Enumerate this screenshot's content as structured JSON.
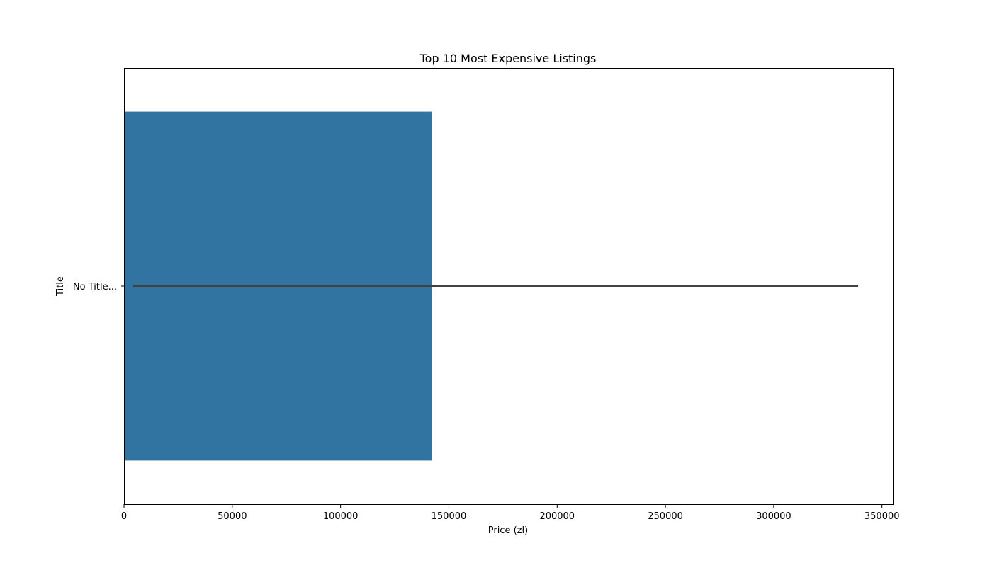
{
  "chart_data": {
    "type": "bar",
    "orientation": "horizontal",
    "title": "Top 10 Most Expensive Listings",
    "xlabel": "Price (zł)",
    "ylabel": "Title",
    "categories": [
      "No Title..."
    ],
    "values": [
      142000
    ],
    "error_bars": [
      {
        "low": 4000,
        "high": 339000
      }
    ],
    "xlim": [
      0,
      355000
    ],
    "xticks": [
      0,
      50000,
      100000,
      150000,
      200000,
      250000,
      300000,
      350000
    ],
    "xtick_labels": [
      "0",
      "50000",
      "100000",
      "150000",
      "200000",
      "250000",
      "300000",
      "350000"
    ],
    "grid": false,
    "legend": "none",
    "colors": {
      "bar": "#3274a1",
      "error_bar": "#424242",
      "axes": "#000000"
    }
  }
}
